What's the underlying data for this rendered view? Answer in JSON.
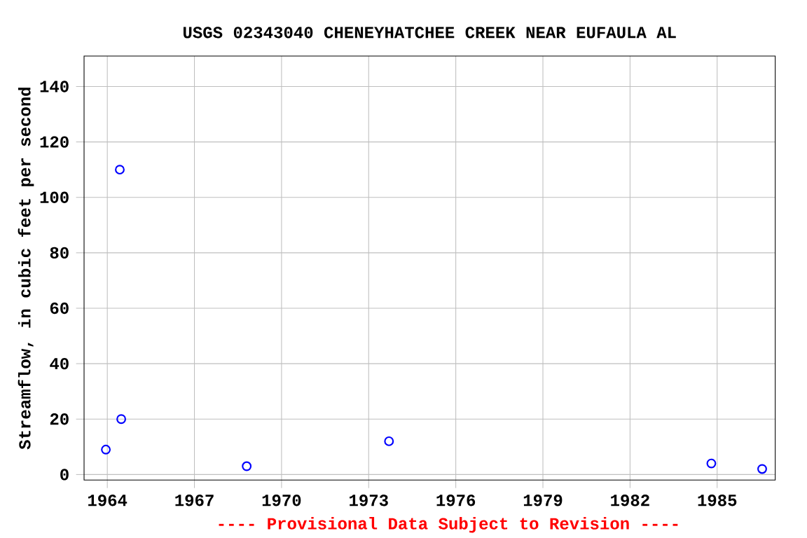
{
  "chart_data": {
    "type": "scatter",
    "title": "USGS 02343040 CHENEYHATCHEE CREEK NEAR EUFAULA AL",
    "ylabel": "Streamflow, in cubic feet per second",
    "annotations": [
      "---- Provisional Data Subject to Revision ----"
    ],
    "x": [
      1963.95,
      1964.43,
      1964.48,
      1968.8,
      1973.7,
      1984.8,
      1986.55
    ],
    "series": [
      {
        "color": "#0000ff",
        "values": [
          9,
          110,
          20,
          3,
          12,
          4,
          2
        ]
      }
    ],
    "xlim": [
      1963.2,
      1987
    ],
    "ylim": [
      -2,
      151
    ],
    "xticks": [
      1964,
      1967,
      1970,
      1973,
      1976,
      1979,
      1982,
      1985
    ],
    "yticks": [
      0,
      20,
      40,
      60,
      80,
      100,
      120,
      140
    ],
    "grid": true,
    "marker": "circle"
  }
}
